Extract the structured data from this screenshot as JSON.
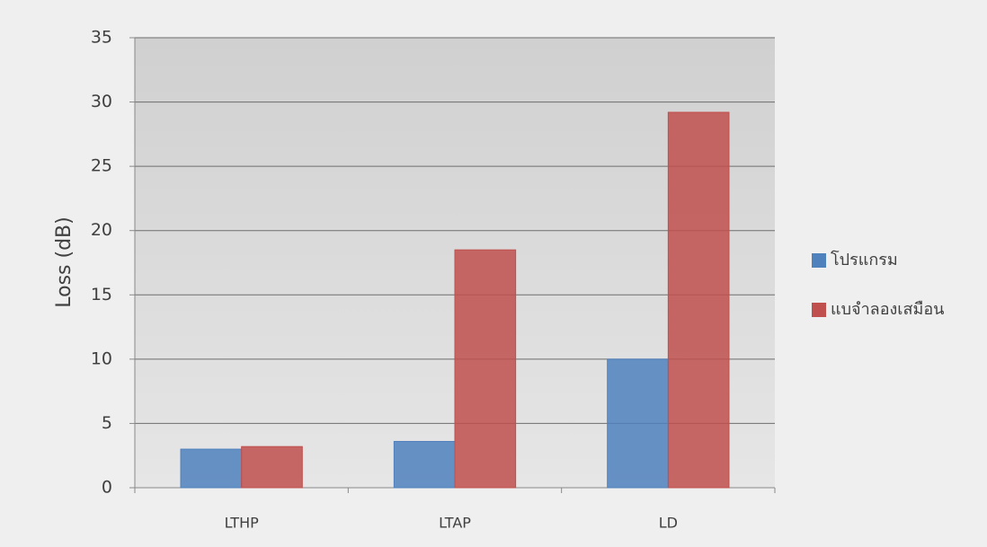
{
  "chart_data": {
    "type": "bar",
    "ylabel": "Loss (dB)",
    "categories": [
      "LTHP",
      "LTAP",
      "LD"
    ],
    "series": [
      {
        "name": "โปรแกรม",
        "color": "#4f81bd",
        "values": [
          3.0,
          3.6,
          10.0
        ]
      },
      {
        "name": "แบจำลองเสมือน",
        "color": "#c0504d",
        "values": [
          3.2,
          18.5,
          29.2
        ]
      }
    ],
    "ylim": [
      0,
      35
    ],
    "yticks": [
      0,
      5,
      10,
      15,
      20,
      25,
      30,
      35
    ],
    "grid": true,
    "legend": "right"
  }
}
